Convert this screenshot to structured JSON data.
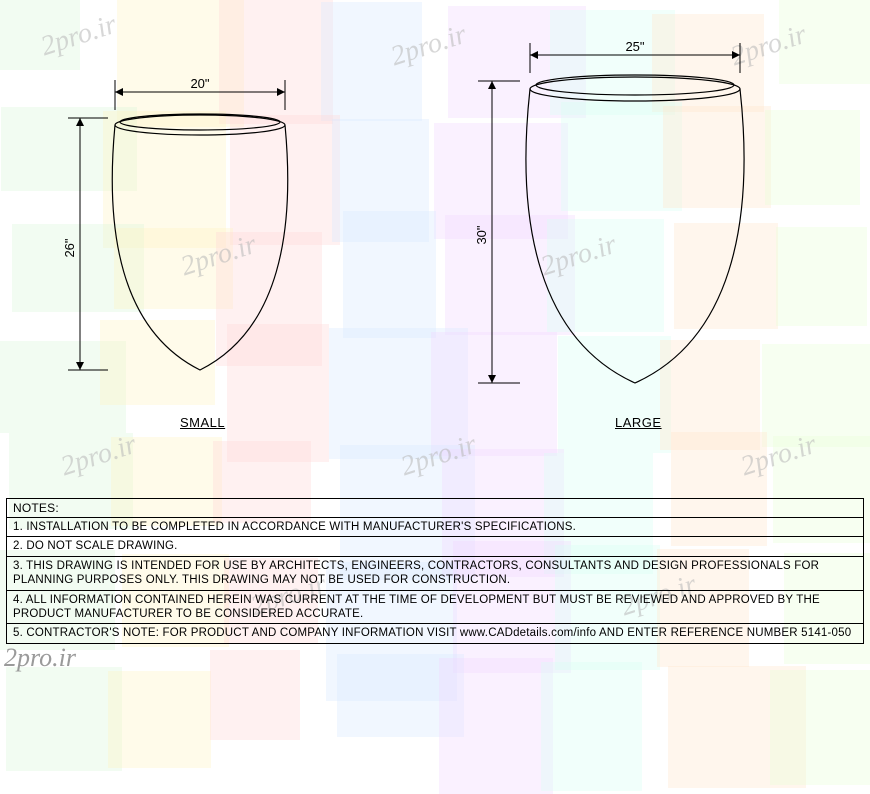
{
  "watermark_text": "2pro.ir",
  "bg": {
    "colors": [
      "#d9f5d9",
      "#fff4c2",
      "#ffd6d6",
      "#d6e8ff",
      "#f0d6ff",
      "#d6fff4",
      "#ffe6cc",
      "#e8ffd6"
    ],
    "tile_opacity": 0.35
  },
  "pots": {
    "small": {
      "label": "SMALL",
      "width_dim": "20\"",
      "height_dim": "26\"",
      "svg": {
        "top_w": 170,
        "body_h": 250,
        "rim_h": 14
      },
      "stroke": "#000000",
      "stroke_width": 1.2
    },
    "large": {
      "label": "LARGE",
      "width_dim": "25\"",
      "height_dim": "30\"",
      "svg": {
        "top_w": 210,
        "body_h": 300,
        "rim_h": 16
      },
      "stroke": "#000000",
      "stroke_width": 1.2
    }
  },
  "notes": {
    "header": "NOTES:",
    "items": [
      "1.   INSTALLATION TO BE COMPLETED IN ACCORDANCE WITH MANUFACTURER'S SPECIFICATIONS.",
      "2.   DO NOT SCALE DRAWING.",
      "3.   THIS DRAWING IS INTENDED FOR USE BY ARCHITECTS, ENGINEERS, CONTRACTORS, CONSULTANTS AND DESIGN PROFESSIONALS FOR PLANNING PURPOSES ONLY.  THIS DRAWING MAY NOT BE USED FOR CONSTRUCTION.",
      "4.   ALL INFORMATION CONTAINED HEREIN WAS CURRENT AT THE TIME OF DEVELOPMENT BUT MUST BE REVIEWED AND APPROVED BY THE PRODUCT MANUFACTURER TO BE CONSIDERED ACCURATE.",
      "5.   CONTRACTOR'S NOTE: FOR PRODUCT AND COMPANY INFORMATION VISIT www.CADdetails.com/info AND ENTER REFERENCE NUMBER 5141-050"
    ]
  },
  "dim_style": {
    "arrow_size": 6,
    "text_fontsize": 13,
    "line_color": "#000000"
  }
}
